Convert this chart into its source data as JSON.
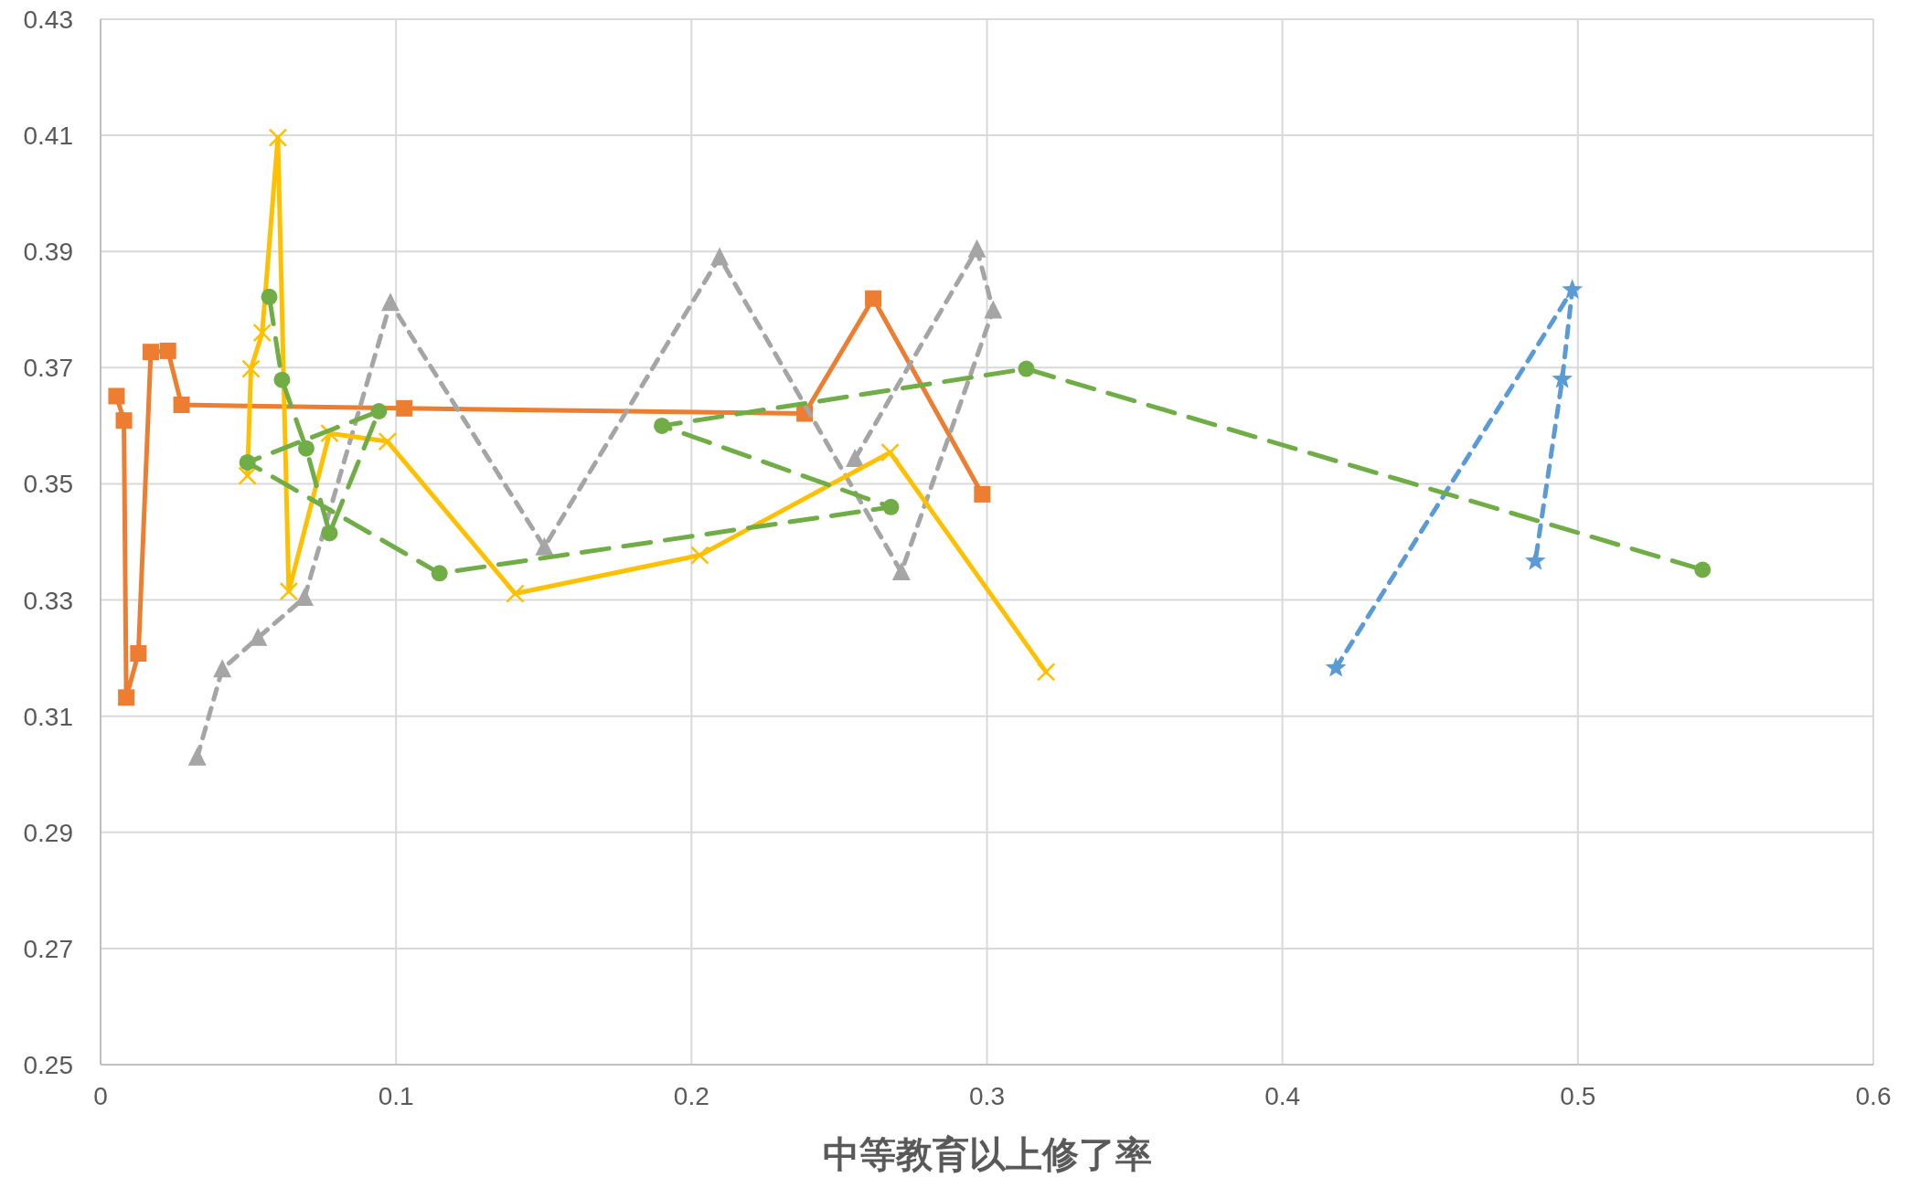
{
  "chart_data": {
    "type": "line",
    "xlabel": "中等教育以上修了率",
    "xlim": [
      0,
      0.6
    ],
    "xticks": [
      0,
      0.1,
      0.2,
      0.3,
      0.4,
      0.5,
      0.6
    ],
    "ylim": [
      0.25,
      0.43
    ],
    "yticks": [
      0.25,
      0.27,
      0.29,
      0.31,
      0.33,
      0.35,
      0.37,
      0.39,
      0.41,
      0.43
    ],
    "grid": true,
    "series": [
      {
        "color": "#5b9bd5",
        "marker": "star",
        "line_style": "dotted",
        "x": [
          0.4181,
          0.4981,
          0.4947,
          0.4856
        ],
        "values": [
          0.3183,
          0.3834,
          0.368,
          0.3367
        ]
      },
      {
        "color": "#ed7d31",
        "marker": "square",
        "line_style": "solid",
        "x": [
          0.0054,
          0.0079,
          0.0087,
          0.0128,
          0.017,
          0.0228,
          0.0274,
          0.1028,
          0.2383,
          0.2615,
          0.2984
        ],
        "values": [
          0.3651,
          0.3609,
          0.3132,
          0.3208,
          0.3727,
          0.3729,
          0.3636,
          0.363,
          0.3621,
          0.3819,
          0.3482
        ]
      },
      {
        "color": "#a5a5a5",
        "marker": "triangle",
        "line_style": "dotted",
        "x": [
          0.0327,
          0.0412,
          0.0533,
          0.069,
          0.0981,
          0.1502,
          0.2095,
          0.271,
          0.3021,
          0.2966,
          0.2553
        ],
        "values": [
          0.3029,
          0.3181,
          0.3235,
          0.3304,
          0.3812,
          0.3391,
          0.389,
          0.3348,
          0.3799,
          0.3904,
          0.3543
        ]
      },
      {
        "color": "#ffc000",
        "marker": "cross",
        "line_style": "solid",
        "x": [
          0.0497,
          0.0509,
          0.0547,
          0.06,
          0.0637,
          0.0775,
          0.0971,
          0.1403,
          0.2028,
          0.2672,
          0.32
        ],
        "values": [
          0.3514,
          0.3698,
          0.376,
          0.4096,
          0.3315,
          0.3587,
          0.3573,
          0.3311,
          0.3377,
          0.3554,
          0.3176
        ]
      },
      {
        "color": "#70ad47",
        "marker": "circle",
        "line_style": "dashed",
        "x": [
          0.0571,
          0.0614,
          0.0696,
          0.0775,
          0.0942,
          0.0497,
          0.1147,
          0.2675,
          0.19,
          0.3133,
          0.5422
        ],
        "values": [
          0.3822,
          0.3679,
          0.3561,
          0.3415,
          0.3625,
          0.3537,
          0.3346,
          0.346,
          0.36,
          0.3698,
          0.3352
        ]
      }
    ]
  }
}
